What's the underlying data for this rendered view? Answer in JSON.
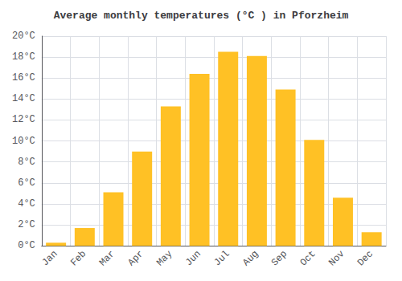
{
  "chart_data": {
    "type": "bar",
    "title": "Average monthly temperatures (°C ) in Pforzheim",
    "categories": [
      "Jan",
      "Feb",
      "Mar",
      "Apr",
      "May",
      "Jun",
      "Jul",
      "Aug",
      "Sep",
      "Oct",
      "Nov",
      "Dec"
    ],
    "values": [
      0.3,
      1.7,
      5.1,
      9.0,
      13.3,
      16.4,
      18.5,
      18.1,
      14.9,
      10.1,
      4.6,
      1.3
    ],
    "color": "#FFC125",
    "ylim": [
      0,
      20
    ],
    "yticks": [
      {
        "value": 0,
        "label": "0°C"
      },
      {
        "value": 2,
        "label": "2°C"
      },
      {
        "value": 4,
        "label": "4°C"
      },
      {
        "value": 6,
        "label": "6°C"
      },
      {
        "value": 8,
        "label": "8°C"
      },
      {
        "value": 10,
        "label": "10°C"
      },
      {
        "value": 12,
        "label": "12°C"
      },
      {
        "value": 14,
        "label": "14°C"
      },
      {
        "value": 16,
        "label": "16°C"
      },
      {
        "value": 18,
        "label": "18°C"
      },
      {
        "value": 20,
        "label": "20°C"
      }
    ],
    "grid": true
  }
}
